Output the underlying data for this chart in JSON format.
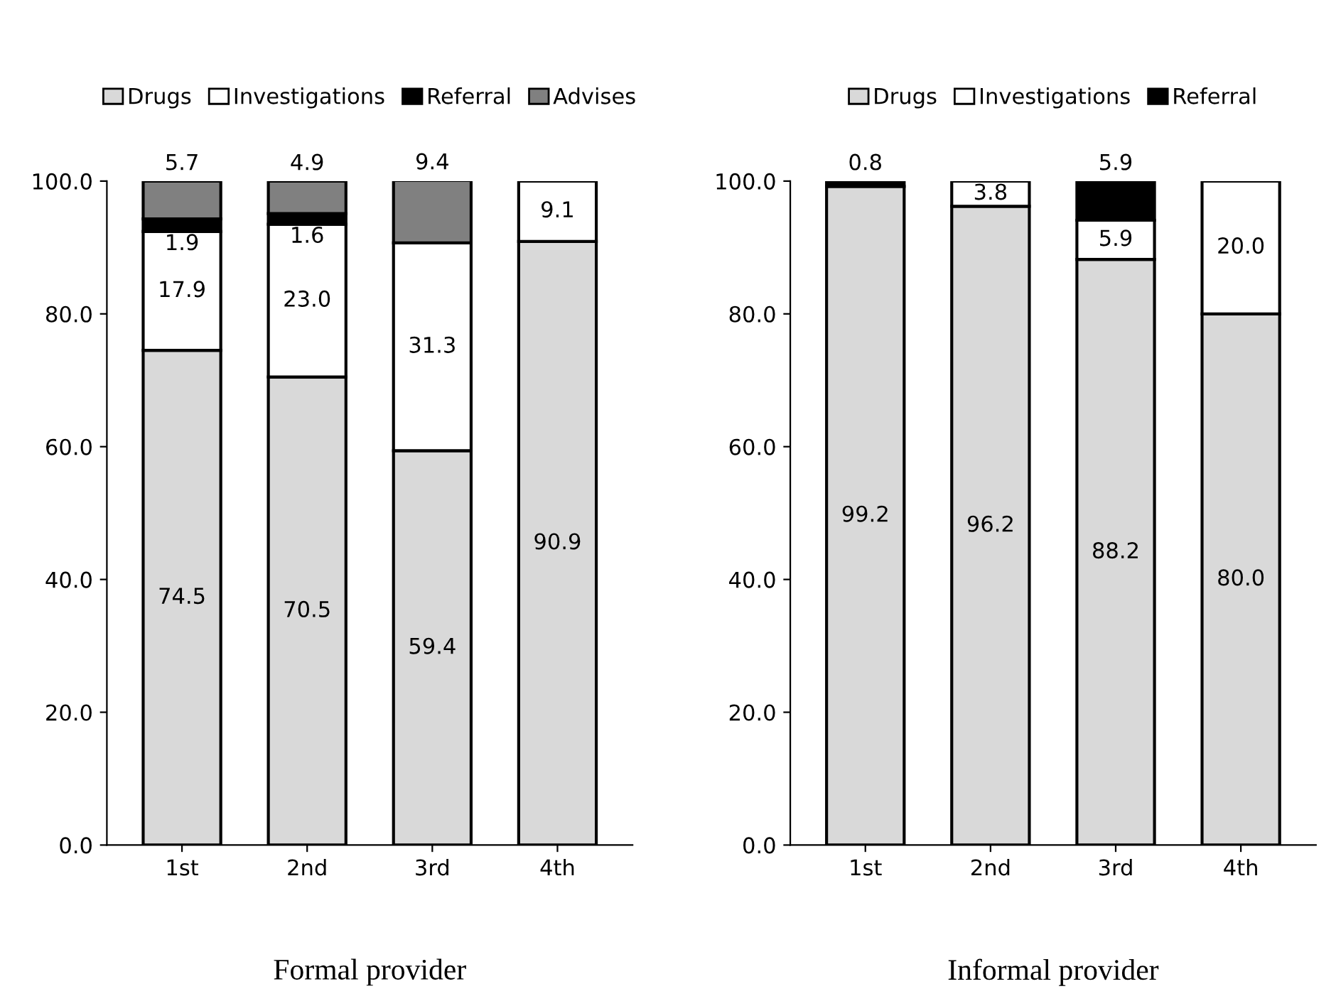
{
  "chart_data": [
    {
      "type": "bar",
      "stacked": true,
      "xlabel": "Formal provider",
      "categories": [
        "1st",
        "2nd",
        "3rd",
        "4th"
      ],
      "ylim": [
        0,
        100
      ],
      "yticks": [
        {
          "value": 0,
          "label": "0.0"
        },
        {
          "value": 20,
          "label": "20.0"
        },
        {
          "value": 40,
          "label": "40.0"
        },
        {
          "value": 60,
          "label": "60.0"
        },
        {
          "value": 80,
          "label": "80.0"
        },
        {
          "value": 100,
          "label": "100.0"
        }
      ],
      "legend": "top",
      "grid": false,
      "series": [
        {
          "name": "Drugs",
          "color": "#d9d9d9",
          "values": [
            74.5,
            70.5,
            59.4,
            90.9
          ],
          "value_labels": [
            "74.5",
            "70.5",
            "59.4",
            "90.9"
          ]
        },
        {
          "name": "Investigations",
          "color": "#ffffff",
          "values": [
            17.9,
            23.0,
            31.3,
            9.1
          ],
          "value_labels": [
            "17.9",
            "23.0",
            "31.3",
            "9.1"
          ]
        },
        {
          "name": "Referral",
          "color": "#000000",
          "values": [
            1.9,
            1.6,
            null,
            null
          ],
          "value_labels": [
            "1.9",
            "1.6",
            null,
            null
          ]
        },
        {
          "name": "Advises",
          "color": "#808080",
          "values": [
            5.7,
            4.9,
            9.4,
            null
          ],
          "value_labels": [
            "5.7",
            "4.9",
            "9.4",
            null
          ]
        }
      ]
    },
    {
      "type": "bar",
      "stacked": true,
      "xlabel": "Informal provider",
      "categories": [
        "1st",
        "2nd",
        "3rd",
        "4th"
      ],
      "ylim": [
        0,
        100
      ],
      "yticks": [
        {
          "value": 0,
          "label": "0.0"
        },
        {
          "value": 20,
          "label": "20.0"
        },
        {
          "value": 40,
          "label": "40.0"
        },
        {
          "value": 60,
          "label": "60.0"
        },
        {
          "value": 80,
          "label": "80.0"
        },
        {
          "value": 100,
          "label": "100.0"
        }
      ],
      "legend": "top",
      "grid": false,
      "series": [
        {
          "name": "Drugs",
          "color": "#d9d9d9",
          "values": [
            99.2,
            96.2,
            88.2,
            80.0
          ],
          "value_labels": [
            "99.2",
            "96.2",
            "88.2",
            "80.0"
          ]
        },
        {
          "name": "Investigations",
          "color": "#ffffff",
          "values": [
            null,
            3.8,
            5.9,
            20.0
          ],
          "value_labels": [
            null,
            "3.8",
            "5.9",
            "20.0"
          ]
        },
        {
          "name": "Referral",
          "color": "#000000",
          "values": [
            0.8,
            null,
            5.9,
            null
          ],
          "value_labels": [
            "0.8",
            null,
            "5.9",
            null
          ]
        }
      ]
    }
  ]
}
